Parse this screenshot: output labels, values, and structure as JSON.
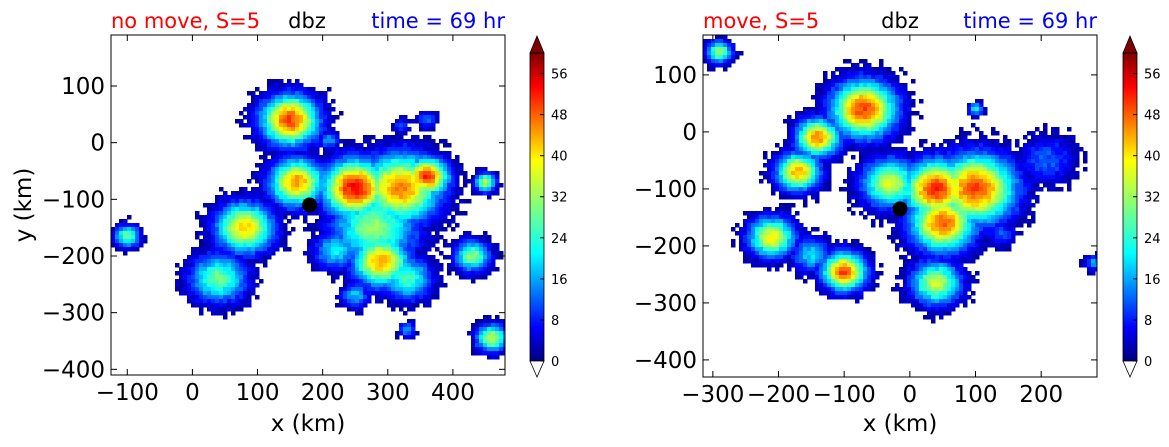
{
  "chart_data": [
    {
      "type": "heatmap",
      "title_left": "no move, S=5",
      "title_center": "dbz",
      "title_right": "time = 69 hr",
      "xlabel": "x (km)",
      "ylabel": "y (km)",
      "xlim": [
        -125,
        480
      ],
      "ylim": [
        -410,
        190
      ],
      "xticks": [
        -100,
        0,
        100,
        200,
        300,
        400
      ],
      "yticks": [
        -400,
        -300,
        -200,
        -100,
        0,
        100
      ],
      "colorbar_ticks": [
        0,
        8,
        16,
        24,
        32,
        40,
        48,
        56
      ],
      "colorbar_range": [
        0,
        60
      ],
      "center_marker": {
        "x": 180,
        "y": -110
      },
      "cells": [
        {
          "x": 150,
          "y": 40,
          "r": 40,
          "peak": 50
        },
        {
          "x": 210,
          "y": 5,
          "r": 15,
          "peak": 18
        },
        {
          "x": 160,
          "y": -70,
          "r": 38,
          "peak": 45
        },
        {
          "x": 250,
          "y": -80,
          "r": 45,
          "peak": 54
        },
        {
          "x": 320,
          "y": -80,
          "r": 55,
          "peak": 46
        },
        {
          "x": 360,
          "y": -60,
          "r": 30,
          "peak": 52
        },
        {
          "x": 280,
          "y": -150,
          "r": 60,
          "peak": 32
        },
        {
          "x": 290,
          "y": -210,
          "r": 40,
          "peak": 44
        },
        {
          "x": 330,
          "y": -240,
          "r": 35,
          "peak": 28
        },
        {
          "x": 220,
          "y": -190,
          "r": 30,
          "peak": 24
        },
        {
          "x": 80,
          "y": -150,
          "r": 40,
          "peak": 42
        },
        {
          "x": 40,
          "y": -240,
          "r": 40,
          "peak": 30
        },
        {
          "x": 430,
          "y": -200,
          "r": 25,
          "peak": 32
        },
        {
          "x": 450,
          "y": -70,
          "r": 15,
          "peak": 36
        },
        {
          "x": 320,
          "y": 30,
          "r": 12,
          "peak": 12
        },
        {
          "x": 360,
          "y": 40,
          "r": 15,
          "peak": 14
        },
        {
          "x": -100,
          "y": -165,
          "r": 18,
          "peak": 30
        },
        {
          "x": 460,
          "y": -345,
          "r": 22,
          "peak": 36
        },
        {
          "x": 330,
          "y": -330,
          "r": 12,
          "peak": 18
        },
        {
          "x": 250,
          "y": -270,
          "r": 20,
          "peak": 20
        }
      ]
    },
    {
      "type": "heatmap",
      "title_left": "move, S=5",
      "title_center": "dbz",
      "title_right": "time = 69 hr",
      "xlabel": "x (km)",
      "ylabel": "",
      "xlim": [
        -315,
        285
      ],
      "ylim": [
        -430,
        170
      ],
      "xticks": [
        -300,
        -200,
        -100,
        0,
        100,
        200
      ],
      "yticks": [
        -400,
        -300,
        -200,
        -100,
        0,
        100
      ],
      "colorbar_ticks": [
        0,
        8,
        16,
        24,
        32,
        40,
        48,
        56
      ],
      "colorbar_range": [
        0,
        60
      ],
      "center_marker": {
        "x": -15,
        "y": -135
      },
      "cells": [
        {
          "x": -290,
          "y": 140,
          "r": 18,
          "peak": 32
        },
        {
          "x": -70,
          "y": 40,
          "r": 45,
          "peak": 50
        },
        {
          "x": -140,
          "y": -10,
          "r": 30,
          "peak": 46
        },
        {
          "x": -170,
          "y": -70,
          "r": 30,
          "peak": 44
        },
        {
          "x": -30,
          "y": -90,
          "r": 40,
          "peak": 36
        },
        {
          "x": 40,
          "y": -100,
          "r": 45,
          "peak": 52
        },
        {
          "x": 100,
          "y": -100,
          "r": 55,
          "peak": 50
        },
        {
          "x": 50,
          "y": -160,
          "r": 45,
          "peak": 48
        },
        {
          "x": -210,
          "y": -185,
          "r": 32,
          "peak": 40
        },
        {
          "x": -150,
          "y": -215,
          "r": 28,
          "peak": 22
        },
        {
          "x": -100,
          "y": -245,
          "r": 30,
          "peak": 50
        },
        {
          "x": 40,
          "y": -265,
          "r": 35,
          "peak": 36
        },
        {
          "x": 210,
          "y": -50,
          "r": 40,
          "peak": 14
        },
        {
          "x": 140,
          "y": -180,
          "r": 20,
          "peak": 14
        },
        {
          "x": 100,
          "y": 40,
          "r": 10,
          "peak": 26
        },
        {
          "x": 280,
          "y": -230,
          "r": 12,
          "peak": 18
        }
      ]
    }
  ]
}
